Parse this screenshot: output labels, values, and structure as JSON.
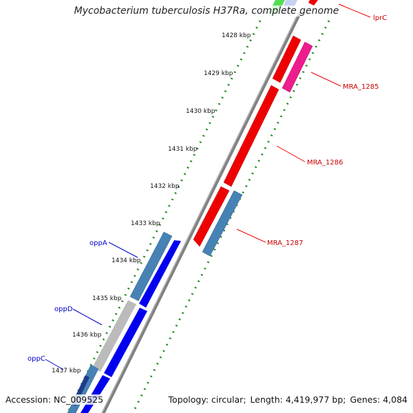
{
  "title": "Mycobacterium tuberculosis H37Ra, complete genome",
  "footer": {
    "accession_label": "Accession:",
    "accession": "NC_009525",
    "topology_label": "Topology:",
    "topology": "circular",
    "length_label": "Length:",
    "length": "4,419,977 bp",
    "genes_label": "Genes:",
    "genes": "4,084"
  },
  "ticks": [
    "1428 kbp",
    "1429 kbp",
    "1430 kbp",
    "1431 kbp",
    "1432 kbp",
    "1433 kbp",
    "1434 kbp",
    "1435 kbp",
    "1436 kbp",
    "1437 kbp"
  ],
  "gene_labels": [
    {
      "id": "lprC",
      "text": "lprC",
      "color": "#cc0000"
    },
    {
      "id": "mra1285",
      "text": "MRA_1285",
      "color": "#cc0000"
    },
    {
      "id": "mra1286",
      "text": "MRA_1286",
      "color": "#cc0000"
    },
    {
      "id": "mra1287",
      "text": "MRA_1287",
      "color": "#cc0000"
    },
    {
      "id": "oppA",
      "text": "oppA",
      "color": "#0000cc"
    },
    {
      "id": "oppD",
      "text": "oppD",
      "color": "#0000cc"
    },
    {
      "id": "oppC",
      "text": "oppC",
      "color": "#0000cc"
    }
  ],
  "colors": {
    "backbone": "#8a8a8a",
    "tick_dots": "#228b22",
    "red_gene": "#ee0000",
    "magenta_gene": "#ee1c8c",
    "steel_gene": "#4682b4",
    "blue_gene": "#0000ee",
    "grey_gene": "#bbbbbb",
    "green_gene": "#55dd55",
    "lavender_gene": "#c8d0f4"
  }
}
